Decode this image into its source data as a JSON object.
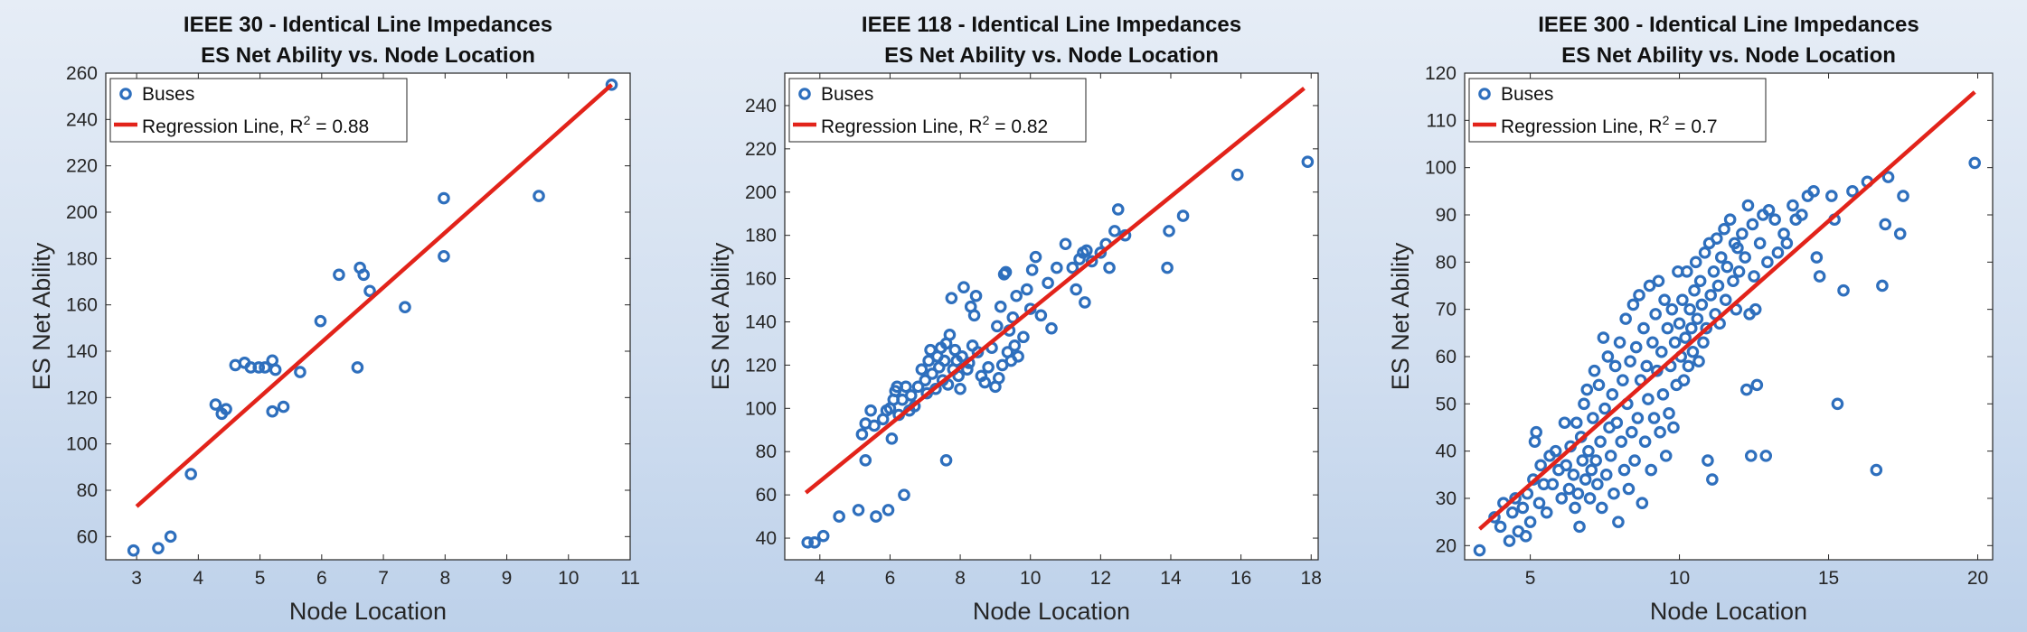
{
  "charts": [
    {
      "type": "scatter",
      "title_line1": "IEEE 30 - Identical Line Impedances",
      "title_line2": "ES Net Ability vs. Node Location",
      "xlabel": "Node Location",
      "ylabel": "ES Net Ability",
      "xlim": [
        2.5,
        11
      ],
      "ylim": [
        50,
        260
      ],
      "xticks": [
        3,
        4,
        5,
        6,
        7,
        8,
        9,
        10,
        11
      ],
      "yticks": [
        60,
        80,
        100,
        120,
        140,
        160,
        180,
        200,
        220,
        240,
        260
      ],
      "legend": {
        "position": "top-left",
        "series_label": "Buses",
        "fit_label_prefix": "Regression Line, R",
        "fit_label_sup": "2",
        "fit_label_suffix": " =  0.88"
      },
      "colors": {
        "points": "#2e6fbd",
        "line": "#e2231a"
      },
      "regression": {
        "r2": 0.88,
        "x": [
          3.0,
          10.7
        ],
        "y": [
          73,
          255
        ]
      },
      "points": [
        [
          2.95,
          54
        ],
        [
          3.35,
          55
        ],
        [
          3.55,
          60
        ],
        [
          3.88,
          87
        ],
        [
          4.28,
          117
        ],
        [
          4.38,
          113
        ],
        [
          4.45,
          115
        ],
        [
          4.6,
          134
        ],
        [
          4.75,
          135
        ],
        [
          4.85,
          133
        ],
        [
          4.98,
          133
        ],
        [
          5.08,
          133
        ],
        [
          5.2,
          136
        ],
        [
          5.25,
          132
        ],
        [
          5.2,
          114
        ],
        [
          5.38,
          116
        ],
        [
          5.65,
          131
        ],
        [
          5.98,
          153
        ],
        [
          6.28,
          173
        ],
        [
          6.58,
          133
        ],
        [
          6.62,
          176
        ],
        [
          6.68,
          173
        ],
        [
          6.78,
          166
        ],
        [
          7.35,
          159
        ],
        [
          7.98,
          206
        ],
        [
          7.98,
          181
        ],
        [
          9.52,
          207
        ],
        [
          10.7,
          255
        ]
      ]
    },
    {
      "type": "scatter",
      "title_line1": "IEEE 118 - Identical Line Impedances",
      "title_line2": "ES Net Ability vs. Node Location",
      "xlabel": "Node Location",
      "ylabel": "ES Net Ability",
      "xlim": [
        3,
        18.2
      ],
      "ylim": [
        30,
        255
      ],
      "xticks": [
        4,
        6,
        8,
        10,
        12,
        14,
        16,
        18
      ],
      "yticks": [
        40,
        60,
        80,
        100,
        120,
        140,
        160,
        180,
        200,
        220,
        240
      ],
      "legend": {
        "position": "top-left",
        "series_label": "Buses",
        "fit_label_prefix": "Regression Line, R",
        "fit_label_sup": "2",
        "fit_label_suffix": " =  0.82"
      },
      "colors": {
        "points": "#2e6fbd",
        "line": "#e2231a"
      },
      "regression": {
        "r2": 0.82,
        "x": [
          3.6,
          17.8
        ],
        "y": [
          61,
          248
        ]
      },
      "points": [
        [
          3.65,
          38
        ],
        [
          3.85,
          38
        ],
        [
          4.1,
          41
        ],
        [
          4.55,
          50
        ],
        [
          5.1,
          53
        ],
        [
          5.3,
          76
        ],
        [
          5.6,
          50
        ],
        [
          5.95,
          53
        ],
        [
          6.4,
          60
        ],
        [
          7.6,
          76
        ],
        [
          5.2,
          88
        ],
        [
          5.3,
          93
        ],
        [
          5.45,
          99
        ],
        [
          5.55,
          92
        ],
        [
          5.8,
          95
        ],
        [
          5.9,
          99
        ],
        [
          6.0,
          100
        ],
        [
          6.05,
          86
        ],
        [
          6.1,
          104
        ],
        [
          6.15,
          108
        ],
        [
          6.2,
          110
        ],
        [
          6.25,
          97
        ],
        [
          6.35,
          104
        ],
        [
          6.45,
          110
        ],
        [
          6.55,
          99
        ],
        [
          6.6,
          106
        ],
        [
          6.7,
          101
        ],
        [
          6.8,
          110
        ],
        [
          6.9,
          118
        ],
        [
          7.0,
          113
        ],
        [
          7.05,
          107
        ],
        [
          7.1,
          122
        ],
        [
          7.15,
          127
        ],
        [
          7.2,
          116
        ],
        [
          7.3,
          109
        ],
        [
          7.35,
          124
        ],
        [
          7.4,
          119
        ],
        [
          7.45,
          128
        ],
        [
          7.5,
          113
        ],
        [
          7.55,
          122
        ],
        [
          7.6,
          130
        ],
        [
          7.65,
          111
        ],
        [
          7.7,
          134
        ],
        [
          7.75,
          151
        ],
        [
          7.8,
          118
        ],
        [
          7.85,
          127
        ],
        [
          7.9,
          122
        ],
        [
          7.95,
          115
        ],
        [
          8.0,
          109
        ],
        [
          8.05,
          124
        ],
        [
          8.1,
          156
        ],
        [
          8.2,
          118
        ],
        [
          8.25,
          121
        ],
        [
          8.3,
          147
        ],
        [
          8.35,
          129
        ],
        [
          8.4,
          143
        ],
        [
          8.45,
          152
        ],
        [
          8.5,
          126
        ],
        [
          8.6,
          115
        ],
        [
          8.7,
          112
        ],
        [
          8.8,
          119
        ],
        [
          8.9,
          128
        ],
        [
          9.0,
          110
        ],
        [
          9.05,
          138
        ],
        [
          9.1,
          114
        ],
        [
          9.15,
          147
        ],
        [
          9.2,
          120
        ],
        [
          9.25,
          162
        ],
        [
          9.3,
          163
        ],
        [
          9.35,
          126
        ],
        [
          9.4,
          136
        ],
        [
          9.45,
          122
        ],
        [
          9.5,
          142
        ],
        [
          9.55,
          129
        ],
        [
          9.6,
          152
        ],
        [
          9.65,
          124
        ],
        [
          9.8,
          133
        ],
        [
          9.9,
          155
        ],
        [
          10.0,
          146
        ],
        [
          10.05,
          164
        ],
        [
          10.15,
          170
        ],
        [
          10.3,
          143
        ],
        [
          10.5,
          158
        ],
        [
          10.6,
          137
        ],
        [
          10.75,
          165
        ],
        [
          11.0,
          176
        ],
        [
          11.2,
          165
        ],
        [
          11.3,
          155
        ],
        [
          11.4,
          169
        ],
        [
          11.5,
          172
        ],
        [
          11.55,
          149
        ],
        [
          11.6,
          173
        ],
        [
          11.75,
          168
        ],
        [
          12.0,
          172
        ],
        [
          12.15,
          176
        ],
        [
          12.25,
          165
        ],
        [
          12.4,
          182
        ],
        [
          12.5,
          192
        ],
        [
          12.7,
          180
        ],
        [
          13.9,
          165
        ],
        [
          13.95,
          182
        ],
        [
          14.35,
          189
        ],
        [
          15.9,
          208
        ],
        [
          17.9,
          214
        ]
      ]
    },
    {
      "type": "scatter",
      "title_line1": "IEEE 300 - Identical Line Impedances",
      "title_line2": "ES Net Ability vs. Node Location",
      "xlabel": "Node Location",
      "ylabel": "ES Net Ability",
      "xlim": [
        2.8,
        20.5
      ],
      "ylim": [
        17,
        120
      ],
      "xticks": [
        5,
        10,
        15,
        20
      ],
      "yticks": [
        20,
        30,
        40,
        50,
        60,
        70,
        80,
        90,
        100,
        110,
        120
      ],
      "legend": {
        "position": "top-left",
        "series_label": "Buses",
        "fit_label_prefix": "Regression Line, R",
        "fit_label_sup": "2",
        "fit_label_suffix": " =  0.7"
      },
      "colors": {
        "points": "#2e6fbd",
        "line": "#e2231a"
      },
      "regression": {
        "r2": 0.7,
        "x": [
          3.3,
          19.9
        ],
        "y": [
          23.5,
          116
        ]
      },
      "points": [
        [
          3.3,
          19
        ],
        [
          3.8,
          26
        ],
        [
          4.0,
          24
        ],
        [
          4.1,
          29
        ],
        [
          4.3,
          21
        ],
        [
          4.4,
          27
        ],
        [
          4.5,
          30
        ],
        [
          4.6,
          23
        ],
        [
          4.75,
          28
        ],
        [
          4.85,
          22
        ],
        [
          4.9,
          31
        ],
        [
          5.0,
          25
        ],
        [
          5.1,
          34
        ],
        [
          5.15,
          42
        ],
        [
          5.2,
          44
        ],
        [
          5.3,
          29
        ],
        [
          5.35,
          37
        ],
        [
          5.45,
          33
        ],
        [
          5.55,
          27
        ],
        [
          5.65,
          39
        ],
        [
          5.75,
          33
        ],
        [
          5.85,
          40
        ],
        [
          5.95,
          36
        ],
        [
          6.05,
          30
        ],
        [
          6.15,
          46
        ],
        [
          6.2,
          37
        ],
        [
          6.3,
          32
        ],
        [
          6.35,
          41
        ],
        [
          6.45,
          35
        ],
        [
          6.5,
          28
        ],
        [
          6.55,
          46
        ],
        [
          6.6,
          31
        ],
        [
          6.65,
          24
        ],
        [
          6.7,
          43
        ],
        [
          6.75,
          38
        ],
        [
          6.8,
          50
        ],
        [
          6.85,
          34
        ],
        [
          6.9,
          53
        ],
        [
          6.95,
          40
        ],
        [
          7.0,
          30
        ],
        [
          7.05,
          36
        ],
        [
          7.1,
          47
        ],
        [
          7.15,
          57
        ],
        [
          7.2,
          38
        ],
        [
          7.25,
          33
        ],
        [
          7.3,
          54
        ],
        [
          7.35,
          42
        ],
        [
          7.4,
          28
        ],
        [
          7.45,
          64
        ],
        [
          7.5,
          49
        ],
        [
          7.55,
          35
        ],
        [
          7.6,
          60
        ],
        [
          7.65,
          45
        ],
        [
          7.7,
          39
        ],
        [
          7.75,
          52
        ],
        [
          7.8,
          31
        ],
        [
          7.85,
          58
        ],
        [
          7.9,
          46
        ],
        [
          7.95,
          25
        ],
        [
          8.0,
          63
        ],
        [
          8.05,
          42
        ],
        [
          8.1,
          55
        ],
        [
          8.15,
          36
        ],
        [
          8.2,
          68
        ],
        [
          8.25,
          50
        ],
        [
          8.3,
          32
        ],
        [
          8.35,
          59
        ],
        [
          8.4,
          44
        ],
        [
          8.45,
          71
        ],
        [
          8.5,
          38
        ],
        [
          8.55,
          62
        ],
        [
          8.6,
          47
        ],
        [
          8.65,
          73
        ],
        [
          8.7,
          55
        ],
        [
          8.75,
          29
        ],
        [
          8.8,
          66
        ],
        [
          8.85,
          42
        ],
        [
          8.9,
          58
        ],
        [
          8.95,
          51
        ],
        [
          9.0,
          75
        ],
        [
          9.05,
          36
        ],
        [
          9.1,
          63
        ],
        [
          9.15,
          47
        ],
        [
          9.2,
          69
        ],
        [
          9.25,
          57
        ],
        [
          9.3,
          76
        ],
        [
          9.35,
          44
        ],
        [
          9.4,
          61
        ],
        [
          9.45,
          52
        ],
        [
          9.5,
          72
        ],
        [
          9.55,
          39
        ],
        [
          9.6,
          66
        ],
        [
          9.65,
          48
        ],
        [
          9.7,
          58
        ],
        [
          9.75,
          70
        ],
        [
          9.8,
          45
        ],
        [
          9.85,
          63
        ],
        [
          9.9,
          54
        ],
        [
          9.95,
          78
        ],
        [
          10.0,
          67
        ],
        [
          10.05,
          60
        ],
        [
          10.1,
          72
        ],
        [
          10.15,
          55
        ],
        [
          10.2,
          64
        ],
        [
          10.25,
          78
        ],
        [
          10.3,
          58
        ],
        [
          10.35,
          70
        ],
        [
          10.4,
          66
        ],
        [
          10.45,
          61
        ],
        [
          10.5,
          74
        ],
        [
          10.55,
          80
        ],
        [
          10.6,
          68
        ],
        [
          10.65,
          59
        ],
        [
          10.7,
          76
        ],
        [
          10.75,
          71
        ],
        [
          10.8,
          63
        ],
        [
          10.85,
          82
        ],
        [
          10.9,
          66
        ],
        [
          10.95,
          38
        ],
        [
          11.0,
          84
        ],
        [
          11.05,
          73
        ],
        [
          11.1,
          34
        ],
        [
          11.15,
          78
        ],
        [
          11.2,
          69
        ],
        [
          11.25,
          85
        ],
        [
          11.3,
          75
        ],
        [
          11.35,
          67
        ],
        [
          11.4,
          81
        ],
        [
          11.5,
          87
        ],
        [
          11.55,
          72
        ],
        [
          11.6,
          79
        ],
        [
          11.7,
          89
        ],
        [
          11.8,
          76
        ],
        [
          11.85,
          84
        ],
        [
          11.9,
          70
        ],
        [
          11.95,
          83
        ],
        [
          12.0,
          78
        ],
        [
          12.1,
          86
        ],
        [
          12.2,
          81
        ],
        [
          12.25,
          53
        ],
        [
          12.3,
          92
        ],
        [
          12.35,
          69
        ],
        [
          12.4,
          39
        ],
        [
          12.45,
          88
        ],
        [
          12.5,
          77
        ],
        [
          12.55,
          70
        ],
        [
          12.6,
          54
        ],
        [
          12.7,
          84
        ],
        [
          12.8,
          90
        ],
        [
          12.9,
          39
        ],
        [
          12.95,
          80
        ],
        [
          13.0,
          91
        ],
        [
          13.2,
          89
        ],
        [
          13.3,
          82
        ],
        [
          13.5,
          86
        ],
        [
          13.6,
          84
        ],
        [
          13.8,
          92
        ],
        [
          13.9,
          89
        ],
        [
          14.1,
          90
        ],
        [
          14.3,
          94
        ],
        [
          14.5,
          95
        ],
        [
          14.6,
          81
        ],
        [
          14.7,
          77
        ],
        [
          15.1,
          94
        ],
        [
          15.2,
          89
        ],
        [
          15.3,
          50
        ],
        [
          15.5,
          74
        ],
        [
          15.8,
          95
        ],
        [
          16.3,
          97
        ],
        [
          16.6,
          36
        ],
        [
          16.8,
          75
        ],
        [
          16.9,
          88
        ],
        [
          17.0,
          98
        ],
        [
          17.4,
          86
        ],
        [
          17.5,
          94
        ],
        [
          19.9,
          101
        ]
      ]
    }
  ]
}
